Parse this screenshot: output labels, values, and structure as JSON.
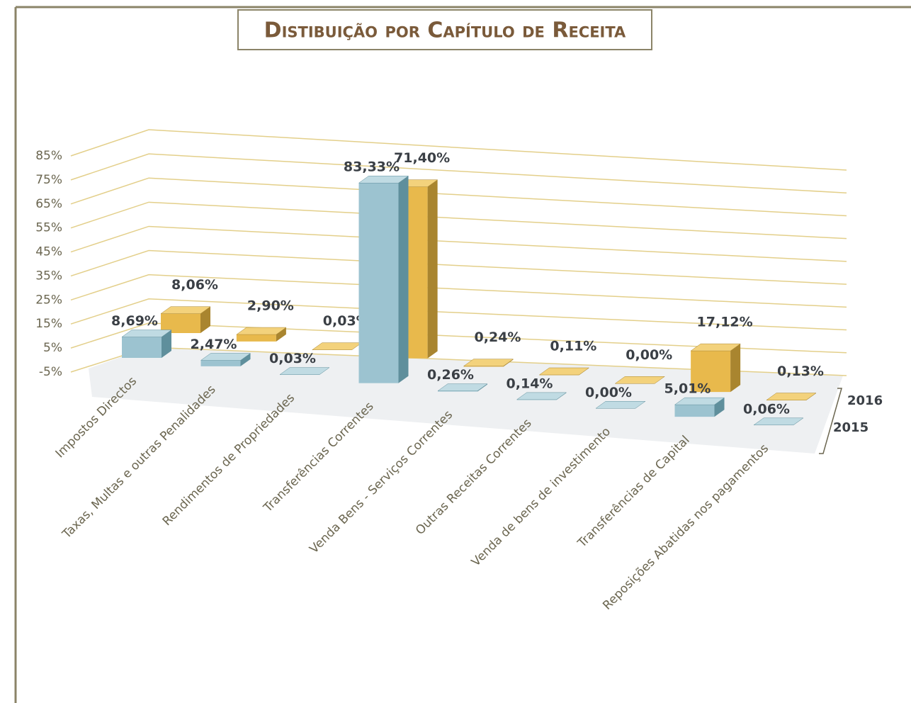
{
  "chart_data": {
    "type": "bar3d",
    "title": "Distibuição por Capítulo de Receita",
    "categories": [
      "Impostos Directos",
      "Taxas, Multas e outras Penalidades",
      "Rendimentos de Propriedades",
      "Transferências Correntes",
      "Venda Bens - Serviços Correntes",
      "Outras Receitas Correntes",
      "Venda de bens de investimento",
      "Transferências de Capital",
      "Reposições Abatidas nos pagamentos"
    ],
    "series": [
      {
        "name": "2015",
        "color": "#9cc3d0",
        "values": [
          8.69,
          2.47,
          0.03,
          83.33,
          0.26,
          0.14,
          0.0,
          5.01,
          0.06
        ],
        "value_labels": [
          "8,69%",
          "2,47%",
          "0,03%",
          "83,33%",
          "0,26%",
          "0,14%",
          "0,00%",
          "5,01%",
          "0,06%"
        ]
      },
      {
        "name": "2016",
        "color": "#e8b94c",
        "values": [
          8.06,
          2.9,
          0.03,
          71.4,
          0.24,
          0.11,
          0.0,
          17.12,
          0.13
        ],
        "value_labels": [
          "8,06%",
          "2,90%",
          "0,03%",
          "71,40%",
          "0,24%",
          "0,11%",
          "0,00%",
          "17,12%",
          "0,13%"
        ]
      }
    ],
    "ylim": [
      -5,
      85
    ],
    "yticks": [
      {
        "value": -5,
        "label": "-5%"
      },
      {
        "value": 5,
        "label": "5%"
      },
      {
        "value": 15,
        "label": "15%"
      },
      {
        "value": 25,
        "label": "25%"
      },
      {
        "value": 35,
        "label": "35%"
      },
      {
        "value": 45,
        "label": "45%"
      },
      {
        "value": 55,
        "label": "55%"
      },
      {
        "value": 65,
        "label": "65%"
      },
      {
        "value": 75,
        "label": "75%"
      },
      {
        "value": 85,
        "label": "85%"
      }
    ],
    "grid": true
  }
}
